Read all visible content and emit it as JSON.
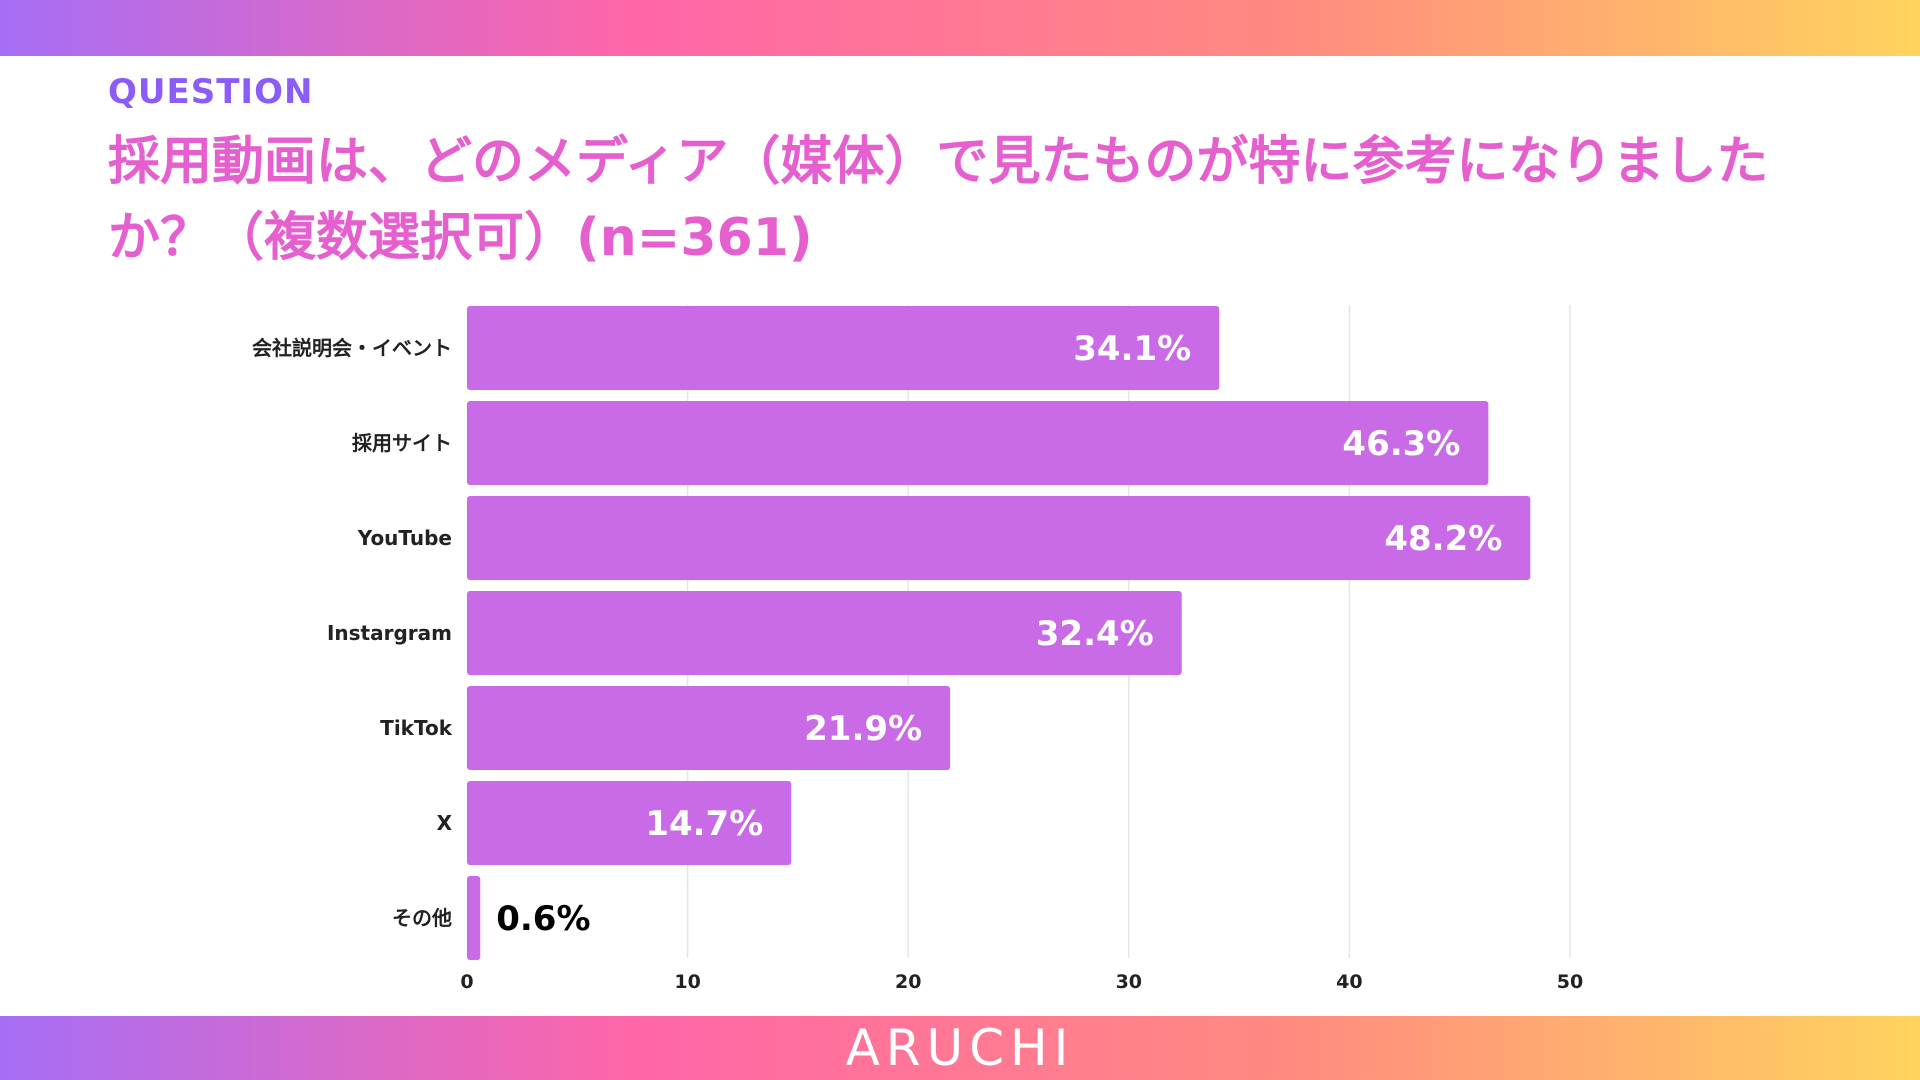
{
  "header": {
    "question_label": "QUESTION",
    "title": "採用動画は、どのメディア（媒体）で見たものが特に参考になりましたか？（複数選択可）(n=361)"
  },
  "footer": {
    "brand": "ARUCHI"
  },
  "colors": {
    "question_label": "#8b5cf6",
    "title": "#e65fcf",
    "bar": "#c96be6",
    "gradient": [
      "#a66ef5",
      "#ff66a8",
      "#ff8a80",
      "#ffd45e"
    ],
    "gridline": "#e5e5e5",
    "label_inside": "#ffffff",
    "label_outside": "#000000"
  },
  "chart_data": {
    "type": "bar",
    "orientation": "horizontal",
    "categories": [
      "会社説明会・イベント",
      "採用サイト",
      "YouTube",
      "Instargram",
      "TikTok",
      "X",
      "その他"
    ],
    "values": [
      34.1,
      46.3,
      48.2,
      32.4,
      21.9,
      14.7,
      0.6
    ],
    "data_labels": [
      "34.1%",
      "46.3%",
      "48.2%",
      "32.4%",
      "21.9%",
      "14.7%",
      "0.6%"
    ],
    "xlim": [
      0,
      50
    ],
    "xticks": [
      0,
      10,
      20,
      30,
      40,
      50
    ],
    "grid": true
  }
}
